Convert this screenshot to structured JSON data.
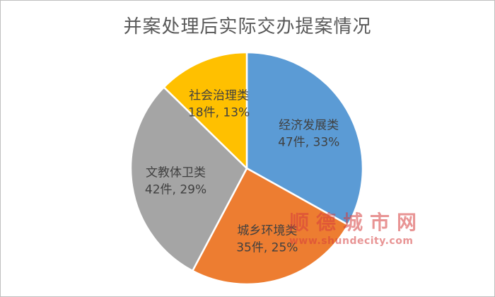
{
  "chart_data": {
    "type": "pie",
    "title": "并案处理后实际交办提案情况",
    "start_angle": "12 o'clock, clockwise",
    "slices": [
      {
        "category": "经济发展类",
        "count_label": "47件",
        "percent_label": "33%",
        "value": 47,
        "color": "#5b9bd5"
      },
      {
        "category": "城乡环境类",
        "count_label": "35件",
        "percent_label": "25%",
        "value": 35,
        "color": "#ed7d31"
      },
      {
        "category": "文教体卫类",
        "count_label": "42件",
        "percent_label": "29%",
        "value": 42,
        "color": "#a5a5a5"
      },
      {
        "category": "社会治理类",
        "count_label": "18件",
        "percent_label": "13%",
        "value": 18,
        "color": "#ffc000"
      }
    ]
  },
  "watermark": {
    "brand": "顺德城市网",
    "url": "www.shundecity.com"
  }
}
